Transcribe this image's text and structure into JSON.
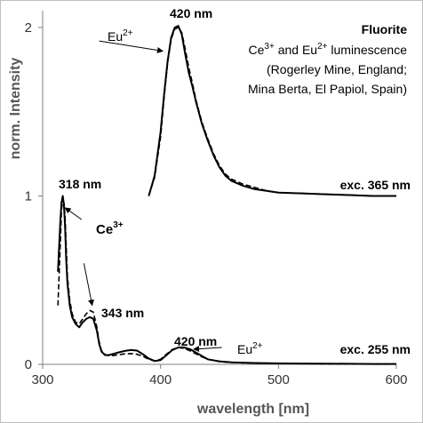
{
  "chart_data": {
    "type": "line",
    "xlabel": "wavelength [nm]",
    "ylabel": "norm. Intensity",
    "xlim": [
      300,
      600
    ],
    "ylim": [
      0,
      2.1
    ],
    "xticks": [
      "300",
      "400",
      "500",
      "600"
    ],
    "yticks": [
      "0",
      "1",
      "2"
    ],
    "grid": false,
    "legend": {
      "position": "top-right",
      "title": "Fluorite",
      "line1_a": "Ce",
      "line1_sup_a": "3+",
      "line1_b": " and Eu",
      "line1_sup_b": "2+",
      "line1_c": " luminescence",
      "line2": "(Rogerley Mine, England;",
      "line3": "Mina Berta, El Papiol, Spain)"
    },
    "annotations": {
      "peak_420_top": "420 nm",
      "eu_top": "Eu",
      "eu_top_sup": "2+",
      "peak_318": "318 nm",
      "ce": "Ce",
      "ce_sup": "3+",
      "peak_343": "343 nm",
      "peak_420_bottom": "420 nm",
      "eu_bottom": "Eu",
      "eu_bottom_sup": "2+",
      "exc_365": "exc. 365 nm",
      "exc_255": "exc. 255 nm"
    },
    "series": [
      {
        "style": "solid",
        "excitation": "365",
        "x": [
          390,
          395,
          400,
          403,
          406,
          409,
          412,
          415,
          418,
          421,
          424,
          427,
          430,
          435,
          440,
          445,
          450,
          455,
          460,
          470,
          480,
          490,
          500,
          520,
          540,
          560,
          580,
          600
        ],
        "y": [
          1.0,
          1.12,
          1.38,
          1.6,
          1.8,
          1.94,
          2.0,
          2.01,
          1.96,
          1.84,
          1.73,
          1.65,
          1.56,
          1.43,
          1.33,
          1.24,
          1.17,
          1.12,
          1.09,
          1.06,
          1.04,
          1.03,
          1.02,
          1.015,
          1.01,
          1.005,
          1.0,
          1.0
        ]
      },
      {
        "style": "dashed",
        "excitation": "365",
        "x": [
          390,
          395,
          400,
          403,
          406,
          409,
          412,
          415,
          418,
          421,
          424,
          427,
          430,
          435,
          440,
          445,
          450,
          455,
          460,
          470,
          480,
          490,
          500,
          520,
          540,
          560,
          580,
          600
        ],
        "y": [
          1.0,
          1.11,
          1.35,
          1.58,
          1.79,
          1.93,
          1.99,
          2.0,
          1.97,
          1.87,
          1.76,
          1.67,
          1.57,
          1.44,
          1.34,
          1.25,
          1.18,
          1.13,
          1.1,
          1.07,
          1.05,
          1.03,
          1.02,
          1.015,
          1.01,
          1.005,
          1.0,
          1.0
        ]
      },
      {
        "style": "solid",
        "excitation": "255",
        "x": [
          313,
          315,
          316,
          317,
          318,
          319,
          320,
          321,
          323,
          325,
          328,
          331,
          334,
          337,
          340,
          343,
          346,
          348,
          350,
          353,
          356,
          360,
          365,
          370,
          375,
          380,
          385,
          390,
          395,
          400,
          405,
          410,
          415,
          420,
          425,
          430,
          435,
          440,
          450,
          460,
          470,
          480,
          500,
          520,
          540,
          560,
          580,
          600
        ],
        "y": [
          0.55,
          0.85,
          0.96,
          1.0,
          0.95,
          0.82,
          0.62,
          0.48,
          0.35,
          0.28,
          0.24,
          0.22,
          0.25,
          0.27,
          0.28,
          0.27,
          0.2,
          0.12,
          0.075,
          0.055,
          0.055,
          0.062,
          0.072,
          0.08,
          0.085,
          0.082,
          0.06,
          0.035,
          0.02,
          0.025,
          0.055,
          0.085,
          0.1,
          0.1,
          0.09,
          0.07,
          0.05,
          0.03,
          0.018,
          0.012,
          0.01,
          0.008,
          0.006,
          0.005,
          0.004,
          0.003,
          0.002,
          0.002
        ]
      },
      {
        "style": "dashed",
        "excitation": "255",
        "x": [
          313,
          315,
          316,
          317,
          318,
          319,
          320,
          321,
          323,
          325,
          328,
          331,
          334,
          337,
          340,
          343,
          346,
          348,
          350,
          353,
          356,
          360,
          365,
          370,
          375,
          380,
          385,
          390,
          395,
          400,
          405,
          410,
          415,
          420,
          425,
          430,
          435,
          440,
          450,
          460,
          470,
          480,
          500,
          520,
          540,
          560,
          580,
          600
        ],
        "y": [
          0.35,
          0.72,
          0.92,
          0.97,
          0.96,
          0.88,
          0.7,
          0.52,
          0.38,
          0.3,
          0.25,
          0.24,
          0.27,
          0.3,
          0.32,
          0.31,
          0.22,
          0.13,
          0.08,
          0.058,
          0.052,
          0.052,
          0.058,
          0.062,
          0.064,
          0.06,
          0.048,
          0.03,
          0.02,
          0.03,
          0.06,
          0.088,
          0.1,
          0.095,
          0.08,
          0.062,
          0.045,
          0.03,
          0.016,
          0.011,
          0.009,
          0.007,
          0.005,
          0.004,
          0.003,
          0.002,
          0.002,
          0.002
        ]
      }
    ]
  }
}
